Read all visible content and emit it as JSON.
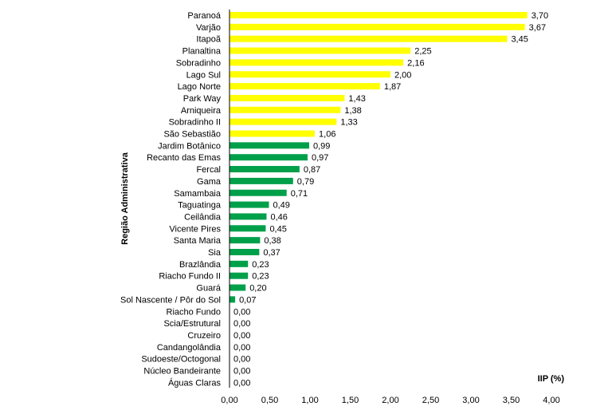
{
  "chart_data": {
    "type": "bar",
    "orientation": "horizontal",
    "title": "",
    "ylabel": "Região Administrativa",
    "xlabel": "IIP (%)",
    "xlim": [
      0,
      4
    ],
    "xticks": [
      "0,00",
      "0,50",
      "1,00",
      "1,50",
      "2,00",
      "2,50",
      "3,00",
      "3,50",
      "4,00"
    ],
    "xtick_values": [
      0,
      0.5,
      1,
      1.5,
      2,
      2.5,
      3,
      3.5,
      4
    ],
    "grid": false,
    "legend": "none",
    "colors": {
      "high": "#FFFF00",
      "low": "#00A04A",
      "axis": "#000000"
    },
    "categories": [
      "Paranoá",
      "Varjão",
      "Itapoã",
      "Planaltina",
      "Sobradinho",
      "Lago Sul",
      "Lago Norte",
      "Park Way",
      "Arniqueira",
      "Sobradinho II",
      "São Sebastião",
      "Jardim Botânico",
      "Recanto das Emas",
      "Fercal",
      "Gama",
      "Samambaia",
      "Taguatinga",
      "Ceilândia",
      "Vicente Pires",
      "Santa Maria",
      "Sia",
      "Brazlândia",
      "Riacho Fundo II",
      "Guará",
      "Sol Nascente / Pôr do Sol",
      "Riacho Fundo",
      "Scia/Estrutural",
      "Cruzeiro",
      "Candangolândia",
      "Sudoeste/Octogonal",
      "Núcleo Bandeirante",
      "Águas Claras"
    ],
    "values": [
      3.7,
      3.67,
      3.45,
      2.25,
      2.16,
      2.0,
      1.87,
      1.43,
      1.38,
      1.33,
      1.06,
      0.99,
      0.97,
      0.87,
      0.79,
      0.71,
      0.49,
      0.46,
      0.45,
      0.38,
      0.37,
      0.23,
      0.23,
      0.2,
      0.07,
      0.0,
      0.0,
      0.0,
      0.0,
      0.0,
      0.0,
      0.0
    ],
    "value_labels": [
      "3,70",
      "3,67",
      "3,45",
      "2,25",
      "2,16",
      "2,00",
      "1,87",
      "1,43",
      "1,38",
      "1,33",
      "1,06",
      "0,99",
      "0,97",
      "0,87",
      "0,79",
      "0,71",
      "0,49",
      "0,46",
      "0,45",
      "0,38",
      "0,37",
      "0,23",
      "0,23",
      "0,20",
      "0,07",
      "0,00",
      "0,00",
      "0,00",
      "0,00",
      "0,00",
      "0,00",
      "0,00"
    ],
    "bar_colors": [
      "high",
      "high",
      "high",
      "high",
      "high",
      "high",
      "high",
      "high",
      "high",
      "high",
      "high",
      "low",
      "low",
      "low",
      "low",
      "low",
      "low",
      "low",
      "low",
      "low",
      "low",
      "low",
      "low",
      "low",
      "low",
      "low",
      "low",
      "low",
      "low",
      "low",
      "low",
      "low"
    ]
  }
}
